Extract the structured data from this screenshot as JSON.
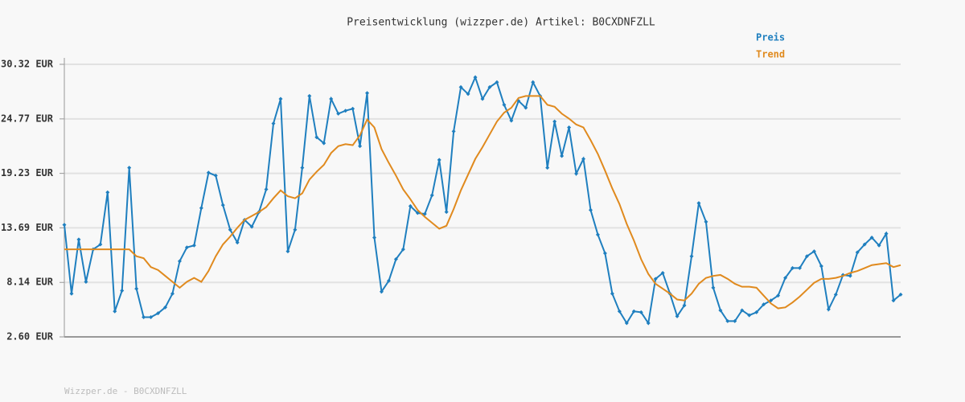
{
  "chart_data": {
    "type": "line",
    "title": "Preisentwicklung (wizzper.de) Artikel: B0CXDNFZLL",
    "footer": "Wizzper.de - B0CXDNFZLL",
    "ylim": [
      2.6,
      30.32
    ],
    "yticks": [
      {
        "value": 2.6,
        "label": "2.60 EUR"
      },
      {
        "value": 8.14,
        "label": "8.14 EUR"
      },
      {
        "value": 13.69,
        "label": "13.69 EUR"
      },
      {
        "value": 19.23,
        "label": "19.23 EUR"
      },
      {
        "value": 24.77,
        "label": "24.77 EUR"
      },
      {
        "value": 30.32,
        "label": "30.32 EUR"
      }
    ],
    "grid": true,
    "legend": "top-right",
    "series": [
      {
        "name": "Preis",
        "color": "#1f7fbf",
        "markers": true,
        "values": [
          14,
          7,
          12.5,
          8.2,
          11.5,
          12,
          17.3,
          5.2,
          7.3,
          19.8,
          7.5,
          4.6,
          4.6,
          5,
          5.6,
          7,
          10.3,
          11.7,
          11.9,
          15.7,
          19.3,
          19,
          16,
          13.5,
          12.2,
          14.5,
          13.8,
          15.3,
          17.6,
          24.3,
          26.8,
          11.3,
          13.5,
          19.8,
          27.1,
          22.9,
          22.3,
          26.8,
          25.3,
          25.6,
          25.8,
          22,
          27.4,
          12.7,
          7.2,
          8.3,
          10.5,
          11.5,
          15.9,
          15.2,
          15.1,
          17,
          20.6,
          15.3,
          23.5,
          28,
          27.3,
          29,
          26.8,
          28,
          28.5,
          26.2,
          24.6,
          26.6,
          25.9,
          28.5,
          27.1,
          19.8,
          24.5,
          21,
          23.9,
          19.2,
          20.7,
          15.5,
          13,
          11.1,
          7,
          5.2,
          4,
          5.2,
          5.1,
          4,
          8.5,
          9.1,
          7,
          4.7,
          5.8,
          10.8,
          16.2,
          14.3,
          7.6,
          5.3,
          4.2,
          4.2,
          5.3,
          4.8,
          5.1,
          5.9,
          6.3,
          6.8,
          8.6,
          9.6,
          9.6,
          10.8,
          11.3,
          9.8,
          5.4,
          6.9,
          8.9,
          8.8,
          11.2,
          12,
          12.7,
          11.9,
          13.1,
          6.3,
          6.9
        ]
      },
      {
        "name": "Trend",
        "color": "#e08a1e",
        "markers": false,
        "values": [
          11.5,
          11.5,
          11.5,
          11.5,
          11.5,
          11.5,
          11.5,
          11.5,
          11.5,
          11.5,
          10.8,
          10.6,
          9.7,
          9.4,
          8.8,
          8.2,
          7.6,
          8.2,
          8.6,
          8.2,
          9.3,
          10.8,
          12,
          12.8,
          13.7,
          14.5,
          14.9,
          15.3,
          15.8,
          16.7,
          17.5,
          16.9,
          16.7,
          17.2,
          18.6,
          19.4,
          20.1,
          21.3,
          22,
          22.2,
          22.1,
          23.1,
          24.7,
          23.9,
          21.7,
          20.3,
          19,
          17.6,
          16.6,
          15.5,
          14.8,
          14.2,
          13.6,
          13.9,
          15.6,
          17.5,
          19.1,
          20.7,
          21.9,
          23.2,
          24.5,
          25.4,
          25.9,
          26.9,
          27.1,
          27.1,
          27.1,
          26.2,
          26,
          25.3,
          24.8,
          24.2,
          23.9,
          22.6,
          21.2,
          19.5,
          17.7,
          16.1,
          14.1,
          12.4,
          10.5,
          9,
          8,
          7.5,
          7,
          6.4,
          6.3,
          7,
          8,
          8.6,
          8.8,
          8.9,
          8.5,
          8,
          7.7,
          7.7,
          7.6,
          6.8,
          6,
          5.5,
          5.6,
          6.1,
          6.7,
          7.4,
          8.1,
          8.5,
          8.5,
          8.6,
          8.8,
          9.1,
          9.3,
          9.6,
          9.9,
          10,
          10.1,
          9.7,
          9.9
        ]
      }
    ]
  }
}
